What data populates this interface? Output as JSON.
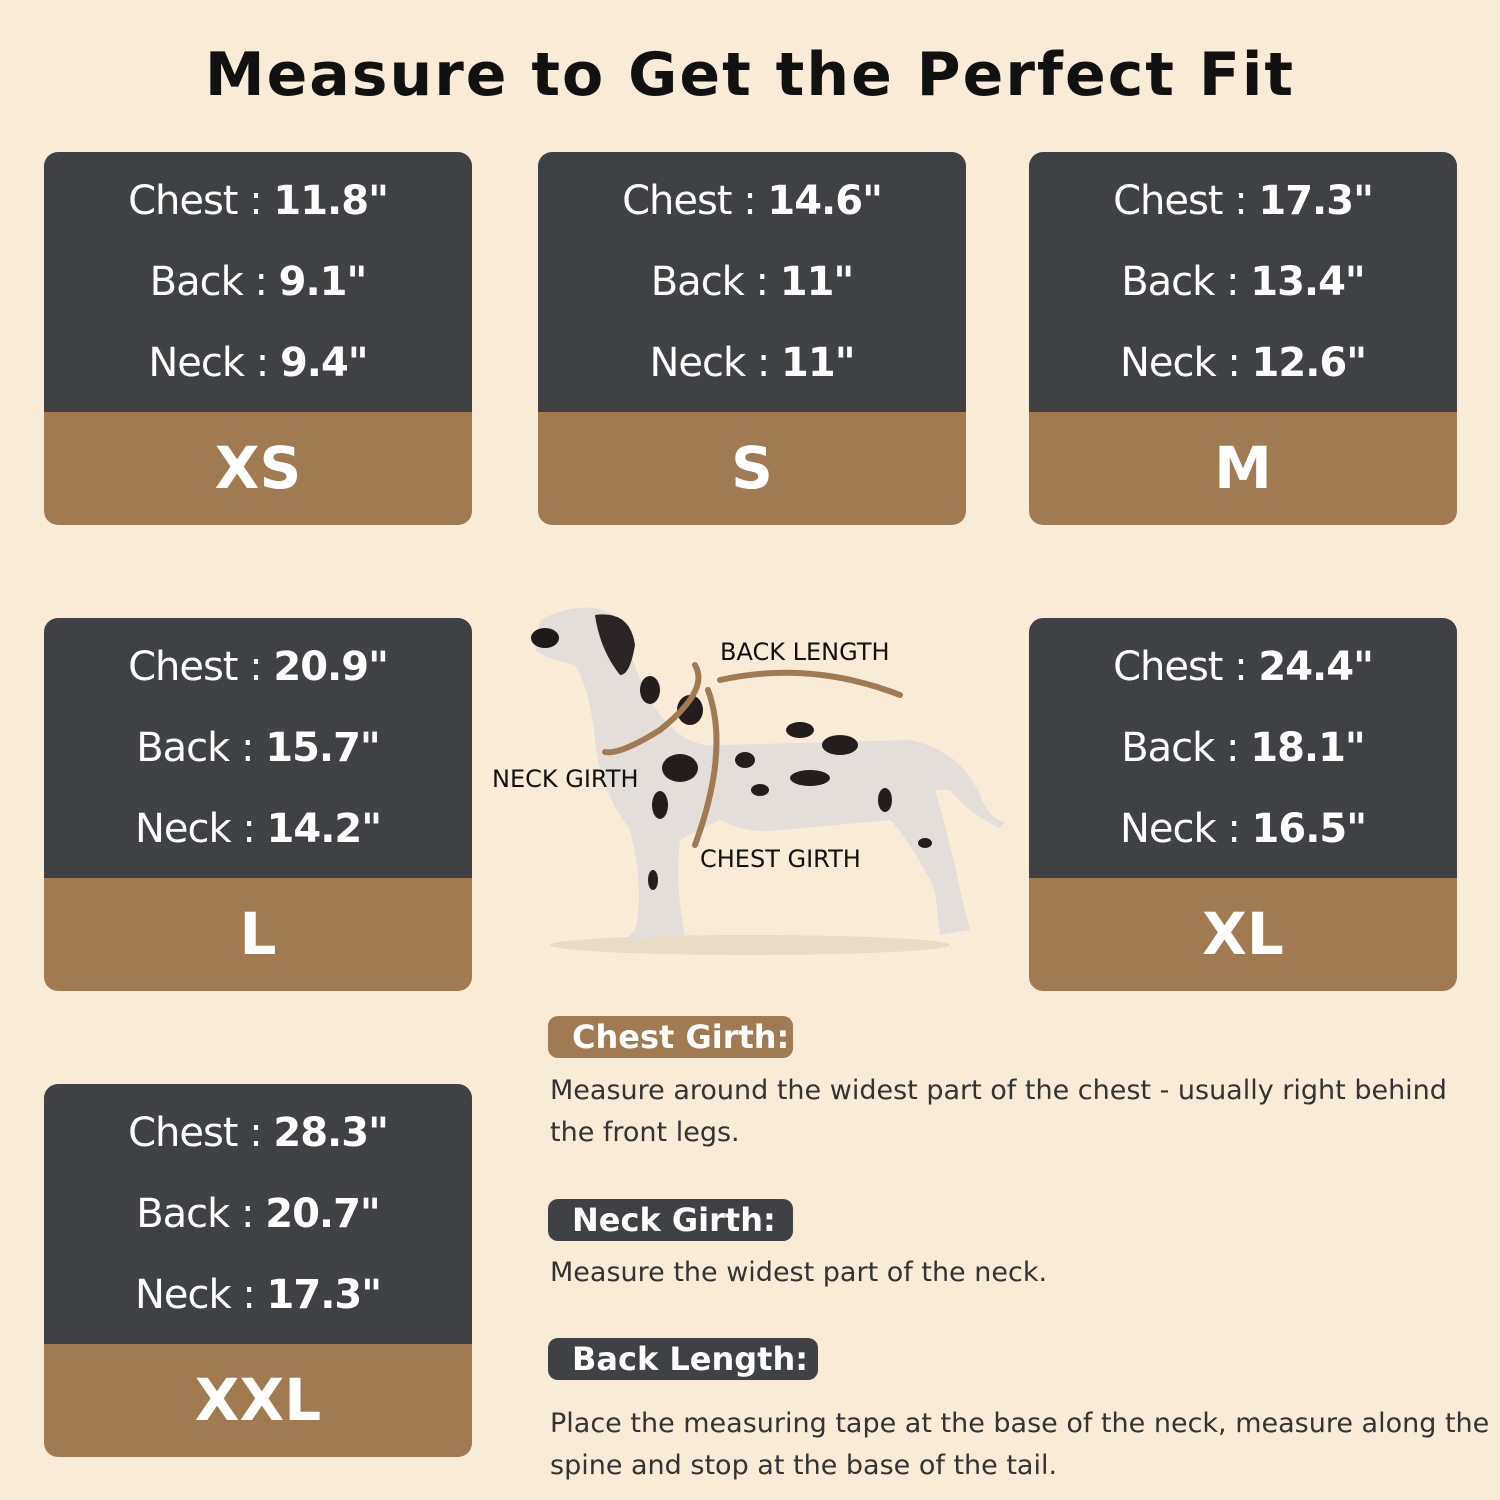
{
  "title": "Measure to Get the Perfect Fit",
  "sizes": [
    {
      "size": "XS",
      "chest": "11.8\"",
      "back": "9.1\"",
      "neck": "9.4\""
    },
    {
      "size": "S",
      "chest": "14.6\"",
      "back": "11\"",
      "neck": "11\""
    },
    {
      "size": "M",
      "chest": "17.3\"",
      "back": "13.4\"",
      "neck": "12.6\""
    },
    {
      "size": "L",
      "chest": "20.9\"",
      "back": "15.7\"",
      "neck": "14.2\""
    },
    {
      "size": "XL",
      "chest": "24.4\"",
      "back": "18.1\"",
      "neck": "16.5\""
    },
    {
      "size": "XXL",
      "chest": "28.3\"",
      "back": "20.7\"",
      "neck": "17.3\""
    }
  ],
  "labels": {
    "chest": "Chest : ",
    "back": "Back : ",
    "neck": "Neck : "
  },
  "diagram": {
    "back_length": "BACK LENGTH",
    "neck_girth": "NECK GIRTH",
    "chest_girth": "CHEST GIRTH"
  },
  "guide": [
    {
      "heading": "Chest Girth:",
      "text": "Measure around the widest part of the chest - usually right behind the front legs."
    },
    {
      "heading": "Neck Girth:",
      "text": "Measure the widest part of the neck."
    },
    {
      "heading": "Back Length:",
      "text": "Place the measuring tape at the base of the neck, measure along the spine and stop at the base of the tail."
    }
  ],
  "colors": {
    "background": "#f8ecd9",
    "card_dark": "#404145",
    "accent_brown": "#a27a52"
  }
}
